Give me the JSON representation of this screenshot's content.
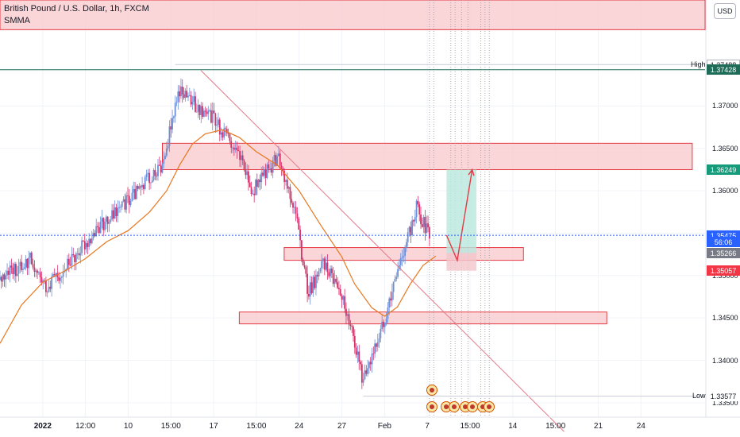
{
  "header": {
    "title": "British Pound / U.S. Dollar, 1h, FXCM",
    "indicator": "SMMA",
    "currency_button": "USD"
  },
  "axis": {
    "high_tag": "High",
    "low_tag": "Low",
    "y_ticks": [
      "1.37000",
      "1.36500",
      "1.36000",
      "1.35000",
      "1.34500",
      "1.34000",
      "1.33500"
    ],
    "x_ticks": [
      {
        "label": "2022",
        "bold": true,
        "x": 1
      },
      {
        "label": "12:00",
        "bold": false,
        "x": 2
      },
      {
        "label": "10",
        "bold": false,
        "x": 3
      },
      {
        "label": "15:00",
        "bold": false,
        "x": 4
      },
      {
        "label": "17",
        "bold": false,
        "x": 5
      },
      {
        "label": "15:00",
        "bold": false,
        "x": 6
      },
      {
        "label": "24",
        "bold": false,
        "x": 7
      },
      {
        "label": "27",
        "bold": false,
        "x": 8
      },
      {
        "label": "Feb",
        "bold": false,
        "x": 9
      },
      {
        "label": "7",
        "bold": false,
        "x": 10
      },
      {
        "label": "15:00",
        "bold": false,
        "x": 11
      },
      {
        "label": "14",
        "bold": false,
        "x": 12
      },
      {
        "label": "15:00",
        "bold": false,
        "x": 13
      },
      {
        "label": "21",
        "bold": false,
        "x": 14
      },
      {
        "label": "24",
        "bold": false,
        "x": 15
      }
    ]
  },
  "price_labels": [
    {
      "text": "1.37488",
      "price": 1.37488,
      "bg": "#ffffff",
      "fg": "#131722",
      "border": "#b2b5be"
    },
    {
      "text": "1.37428",
      "price": 1.37428,
      "bg": "#1e6b57",
      "fg": "#ffffff",
      "border": "#1e6b57"
    },
    {
      "text": "1.36249",
      "price": 1.36249,
      "bg": "#159a7a",
      "fg": "#ffffff",
      "border": "#159a7a"
    },
    {
      "text": "1.35475",
      "price": 1.35475,
      "bg": "#2962ff",
      "fg": "#ffffff",
      "border": "#2962ff"
    },
    {
      "text": "56:06",
      "price": 1.35395,
      "bg": "#2962ff",
      "fg": "#ffffff",
      "border": "#2962ff"
    },
    {
      "text": "1.35266",
      "price": 1.35266,
      "bg": "#787b86",
      "fg": "#ffffff",
      "border": "#787b86"
    },
    {
      "text": "1.35057",
      "price": 1.35057,
      "bg": "#f23645",
      "fg": "#ffffff",
      "border": "#f23645"
    },
    {
      "text": "1.33577",
      "price": 1.33577,
      "bg": "#ffffff",
      "fg": "#131722",
      "border": "#ffffff"
    }
  ],
  "colors": {
    "candle_up": "#6e8fd6",
    "candle_down": "#d4326b",
    "smma": "#e8771f",
    "zone_fill": "#f8c8cc",
    "zone_stroke": "#e53945",
    "trendline": "#e57b8a",
    "target_fill": "#b9e7dc",
    "stop_fill": "#f3c6cb",
    "arrow": "#e53945",
    "grid": "#f0f3fa",
    "current_price_line": "#2962ff",
    "green_line": "#1e6b57"
  },
  "chart_data": {
    "type": "candlestick",
    "symbol": "British Pound / U.S. Dollar",
    "timeframe": "1h",
    "source": "FXCM",
    "ylim": [
      1.3333,
      1.3825
    ],
    "xlim": [
      0,
      16.5
    ],
    "high": 1.37488,
    "low": 1.33577,
    "last_price": 1.35475,
    "series": [
      {
        "name": "SMMA",
        "points": [
          [
            0.0,
            1.342
          ],
          [
            0.5,
            1.3465
          ],
          [
            1.0,
            1.3492
          ],
          [
            1.5,
            1.3505
          ],
          [
            2.0,
            1.352
          ],
          [
            2.5,
            1.354
          ],
          [
            3.0,
            1.3553
          ],
          [
            3.5,
            1.3575
          ],
          [
            3.9,
            1.36
          ],
          [
            4.2,
            1.363
          ],
          [
            4.5,
            1.3655
          ],
          [
            4.8,
            1.3667
          ],
          [
            5.2,
            1.3672
          ],
          [
            5.6,
            1.3663
          ],
          [
            6.0,
            1.3646
          ],
          [
            6.5,
            1.363
          ],
          [
            7.0,
            1.36
          ],
          [
            7.5,
            1.356
          ],
          [
            8.0,
            1.3522
          ],
          [
            8.3,
            1.349
          ],
          [
            8.7,
            1.3462
          ],
          [
            9.0,
            1.3452
          ],
          [
            9.3,
            1.3463
          ],
          [
            9.6,
            1.349
          ],
          [
            9.9,
            1.3512
          ],
          [
            10.2,
            1.3523
          ]
        ]
      }
    ],
    "zones": [
      {
        "from_x": 3.8,
        "to_x": 16.2,
        "from_y": 1.36249,
        "to_y": 1.3656
      },
      {
        "from_x": 6.65,
        "to_x": 12.25,
        "from_y": 1.3518,
        "to_y": 1.3533
      },
      {
        "from_x": 5.6,
        "to_x": 14.2,
        "from_y": 1.3443,
        "to_y": 1.3457
      },
      {
        "from_x": 0.0,
        "to_x": 16.5,
        "from_y": 1.379,
        "to_y": 1.3825
      }
    ],
    "trendline": {
      "from": [
        4.7,
        1.3742
      ],
      "to": [
        13.2,
        1.3316
      ]
    },
    "position": {
      "x_from": 10.45,
      "x_to": 11.15,
      "entry": 1.35266,
      "target": 1.36249,
      "stop": 1.35057
    },
    "projection": [
      [
        10.45,
        1.35475
      ],
      [
        10.7,
        1.3518
      ],
      [
        11.05,
        1.36249
      ]
    ],
    "candles_seed": 12,
    "candles_count": 300
  }
}
